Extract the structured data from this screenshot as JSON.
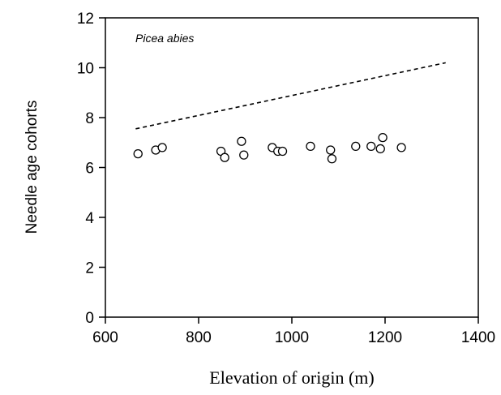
{
  "chart_data": {
    "type": "scatter",
    "title": "",
    "annotation": "Picea  abies",
    "xlabel": "Elevation of origin (m)",
    "ylabel": "Needle age cohorts",
    "xlim": [
      600,
      1400
    ],
    "ylim": [
      0,
      12
    ],
    "xticks": [
      "600",
      "800",
      "1000",
      "1200",
      "1400"
    ],
    "yticks": [
      "0",
      "2",
      "4",
      "6",
      "8",
      "10",
      "12"
    ],
    "grid": false,
    "points": [
      {
        "x": 670,
        "y": 6.55
      },
      {
        "x": 708,
        "y": 6.7
      },
      {
        "x": 722,
        "y": 6.8
      },
      {
        "x": 848,
        "y": 6.65
      },
      {
        "x": 856,
        "y": 6.4
      },
      {
        "x": 892,
        "y": 7.05
      },
      {
        "x": 897,
        "y": 6.5
      },
      {
        "x": 958,
        "y": 6.8
      },
      {
        "x": 970,
        "y": 6.65
      },
      {
        "x": 980,
        "y": 6.65
      },
      {
        "x": 1040,
        "y": 6.85
      },
      {
        "x": 1083,
        "y": 6.7
      },
      {
        "x": 1086,
        "y": 6.35
      },
      {
        "x": 1137,
        "y": 6.85
      },
      {
        "x": 1170,
        "y": 6.85
      },
      {
        "x": 1190,
        "y": 6.75
      },
      {
        "x": 1195,
        "y": 7.2
      },
      {
        "x": 1235,
        "y": 6.8
      }
    ],
    "reference_line": {
      "style": "dashed",
      "x": [
        665,
        1330
      ],
      "y": [
        7.55,
        10.2
      ]
    }
  }
}
